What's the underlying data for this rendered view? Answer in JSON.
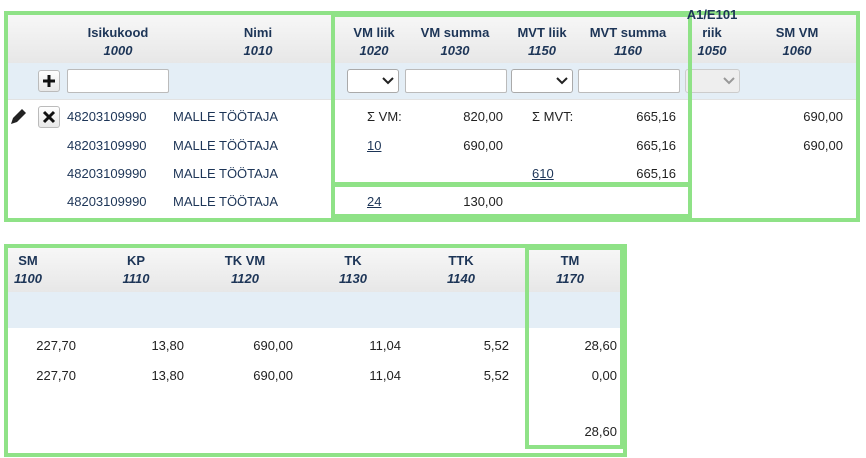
{
  "top_table": {
    "columns": [
      {
        "key": "id",
        "label": "Isikukood",
        "code": "1000"
      },
      {
        "key": "name",
        "label": "Nimi",
        "code": "1010"
      },
      {
        "key": "vm_liik",
        "label": "VM liik",
        "code": "1020"
      },
      {
        "key": "vm_summa",
        "label": "VM summa",
        "code": "1030"
      },
      {
        "key": "mvt_liik",
        "label": "MVT liik",
        "code": "1150"
      },
      {
        "key": "mvt_summa",
        "label": "MVT summa",
        "code": "1160"
      },
      {
        "key": "riik",
        "label": "A1/E101 riik",
        "code": "1050"
      },
      {
        "key": "sm_vm",
        "label": "SM VM",
        "code": "1060"
      }
    ],
    "rows": [
      {
        "id": "48203109990",
        "name": "MALLE TÖÖTAJA",
        "vm_liik": "Σ VM:",
        "vm_summa": "820,00",
        "mvt_liik": "Σ MVT:",
        "mvt_summa": "665,16",
        "sm_vm": "690,00"
      },
      {
        "id": "48203109990",
        "name": "MALLE TÖÖTAJA",
        "vm_liik": "10",
        "vm_summa": "690,00",
        "mvt_summa": "665,16",
        "sm_vm": "690,00"
      },
      {
        "id": "48203109990",
        "name": "MALLE TÖÖTAJA",
        "mvt_liik": "610",
        "mvt_summa": "665,16"
      },
      {
        "id": "48203109990",
        "name": "MALLE TÖÖTAJA",
        "vm_liik": "24",
        "vm_summa": "130,00"
      }
    ]
  },
  "bottom_table": {
    "columns": [
      {
        "key": "sm",
        "label": "SM",
        "code": "1100"
      },
      {
        "key": "kp",
        "label": "KP",
        "code": "1110"
      },
      {
        "key": "tk_vm",
        "label": "TK VM",
        "code": "1120"
      },
      {
        "key": "tk",
        "label": "TK",
        "code": "1130"
      },
      {
        "key": "ttk",
        "label": "TTK",
        "code": "1140"
      },
      {
        "key": "tm",
        "label": "TM",
        "code": "1170"
      }
    ],
    "rows": [
      {
        "sm": "227,70",
        "kp": "13,80",
        "tk_vm": "690,00",
        "tk": "11,04",
        "ttk": "5,52",
        "tm": "28,60"
      },
      {
        "sm": "227,70",
        "kp": "13,80",
        "tk_vm": "690,00",
        "tk": "11,04",
        "ttk": "5,52",
        "tm": "0,00"
      },
      {
        "tm": "28,60"
      }
    ]
  }
}
